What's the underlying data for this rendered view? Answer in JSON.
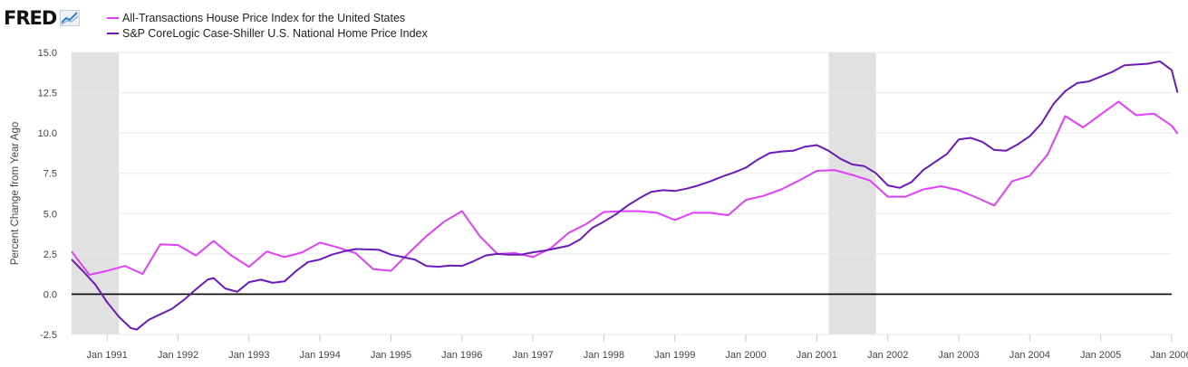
{
  "header": {
    "logo_text": "FRED"
  },
  "colors": {
    "series_1": "#e040fb",
    "series_2": "#6a1ab8",
    "recession": "#e1e1e1",
    "zero_line": "#000000",
    "grid": "#e8e8e8",
    "text": "#444444"
  },
  "chart_data": {
    "type": "line",
    "ylabel": "Percent Change from Year Ago",
    "ylim": [
      -2.5,
      15.0
    ],
    "y_ticks": [
      "-2.5",
      "0.0",
      "2.5",
      "5.0",
      "7.5",
      "10.0",
      "12.5",
      "15.0"
    ],
    "x_ticks": [
      "Jan 1991",
      "Jan 1992",
      "Jan 1993",
      "Jan 1994",
      "Jan 1995",
      "Jan 1996",
      "Jan 1997",
      "Jan 1998",
      "Jan 1999",
      "Jan 2000",
      "Jan 2001",
      "Jan 2002",
      "Jan 2003",
      "Jan 2004",
      "Jan 2005",
      "Jan 2006"
    ],
    "x_range": [
      "1990-07-01",
      "2006-01-01"
    ],
    "legend_position": "top-left",
    "grid": true,
    "recessions": [
      [
        "1990-07-01",
        "1991-03-01"
      ],
      [
        "2001-03-01",
        "2001-11-01"
      ]
    ],
    "series": [
      {
        "name": "All-Transactions House Price Index for the United States",
        "color": "#e040fb",
        "points": [
          [
            "1990-07-01",
            2.65
          ],
          [
            "1990-10-01",
            1.2
          ],
          [
            "1991-01-01",
            1.45
          ],
          [
            "1991-04-01",
            1.75
          ],
          [
            "1991-07-01",
            1.25
          ],
          [
            "1991-10-01",
            3.1
          ],
          [
            "1992-01-01",
            3.05
          ],
          [
            "1992-04-01",
            2.4
          ],
          [
            "1992-07-01",
            3.3
          ],
          [
            "1992-10-01",
            2.4
          ],
          [
            "1993-01-01",
            1.7
          ],
          [
            "1993-04-01",
            2.65
          ],
          [
            "1993-07-01",
            2.3
          ],
          [
            "1993-10-01",
            2.6
          ],
          [
            "1994-01-01",
            3.2
          ],
          [
            "1994-04-01",
            2.9
          ],
          [
            "1994-07-01",
            2.55
          ],
          [
            "1994-10-01",
            1.55
          ],
          [
            "1995-01-01",
            1.45
          ],
          [
            "1995-04-01",
            2.55
          ],
          [
            "1995-07-01",
            3.6
          ],
          [
            "1995-10-01",
            4.5
          ],
          [
            "1996-01-01",
            5.15
          ],
          [
            "1996-04-01",
            3.6
          ],
          [
            "1996-07-01",
            2.5
          ],
          [
            "1996-10-01",
            2.55
          ],
          [
            "1997-01-01",
            2.3
          ],
          [
            "1997-04-01",
            2.85
          ],
          [
            "1997-07-01",
            3.8
          ],
          [
            "1997-10-01",
            4.35
          ],
          [
            "1998-01-01",
            5.1
          ],
          [
            "1998-04-01",
            5.15
          ],
          [
            "1998-07-01",
            5.15
          ],
          [
            "1998-10-01",
            5.05
          ],
          [
            "1999-01-01",
            4.6
          ],
          [
            "1999-04-01",
            5.05
          ],
          [
            "1999-07-01",
            5.05
          ],
          [
            "1999-10-01",
            4.9
          ],
          [
            "2000-01-01",
            5.85
          ],
          [
            "2000-04-01",
            6.1
          ],
          [
            "2000-07-01",
            6.5
          ],
          [
            "2000-10-01",
            7.05
          ],
          [
            "2001-01-01",
            7.65
          ],
          [
            "2001-04-01",
            7.7
          ],
          [
            "2001-07-01",
            7.4
          ],
          [
            "2001-10-01",
            7.05
          ],
          [
            "2002-01-01",
            6.05
          ],
          [
            "2002-04-01",
            6.05
          ],
          [
            "2002-07-01",
            6.5
          ],
          [
            "2002-10-01",
            6.7
          ],
          [
            "2003-01-01",
            6.45
          ],
          [
            "2003-04-01",
            6.0
          ],
          [
            "2003-07-01",
            5.5
          ],
          [
            "2003-10-01",
            7.0
          ],
          [
            "2004-01-01",
            7.35
          ],
          [
            "2004-04-01",
            8.65
          ],
          [
            "2004-07-01",
            11.05
          ],
          [
            "2004-10-01",
            10.35
          ],
          [
            "2005-01-01",
            11.15
          ],
          [
            "2005-04-01",
            11.95
          ],
          [
            "2005-07-01",
            11.1
          ],
          [
            "2005-10-01",
            11.2
          ],
          [
            "2006-01-01",
            10.45
          ],
          [
            "2006-02-01",
            9.95
          ]
        ]
      },
      {
        "name": "S&P CoreLogic Case-Shiller U.S. National Home Price Index",
        "color": "#6a1ab8",
        "points": [
          [
            "1990-07-01",
            2.15
          ],
          [
            "1990-09-01",
            1.4
          ],
          [
            "1990-11-01",
            0.6
          ],
          [
            "1991-01-01",
            -0.5
          ],
          [
            "1991-03-01",
            -1.4
          ],
          [
            "1991-05-01",
            -2.1
          ],
          [
            "1991-06-01",
            -2.2
          ],
          [
            "1991-08-01",
            -1.6
          ],
          [
            "1991-10-01",
            -1.25
          ],
          [
            "1991-12-01",
            -0.9
          ],
          [
            "1992-02-01",
            -0.35
          ],
          [
            "1992-04-01",
            0.3
          ],
          [
            "1992-06-01",
            0.9
          ],
          [
            "1992-07-01",
            1.0
          ],
          [
            "1992-09-01",
            0.35
          ],
          [
            "1992-11-01",
            0.15
          ],
          [
            "1993-01-01",
            0.75
          ],
          [
            "1993-03-01",
            0.9
          ],
          [
            "1993-05-01",
            0.7
          ],
          [
            "1993-07-01",
            0.8
          ],
          [
            "1993-09-01",
            1.45
          ],
          [
            "1993-11-01",
            2.0
          ],
          [
            "1994-01-01",
            2.15
          ],
          [
            "1994-03-01",
            2.45
          ],
          [
            "1994-05-01",
            2.65
          ],
          [
            "1994-07-01",
            2.8
          ],
          [
            "1994-09-01",
            2.78
          ],
          [
            "1994-11-01",
            2.75
          ],
          [
            "1995-01-01",
            2.45
          ],
          [
            "1995-03-01",
            2.3
          ],
          [
            "1995-05-01",
            2.15
          ],
          [
            "1995-07-01",
            1.75
          ],
          [
            "1995-09-01",
            1.7
          ],
          [
            "1995-11-01",
            1.78
          ],
          [
            "1996-01-01",
            1.75
          ],
          [
            "1996-03-01",
            2.05
          ],
          [
            "1996-05-01",
            2.4
          ],
          [
            "1996-07-01",
            2.5
          ],
          [
            "1996-09-01",
            2.45
          ],
          [
            "1996-11-01",
            2.45
          ],
          [
            "1997-01-01",
            2.6
          ],
          [
            "1997-03-01",
            2.7
          ],
          [
            "1997-05-01",
            2.85
          ],
          [
            "1997-07-01",
            3.0
          ],
          [
            "1997-09-01",
            3.4
          ],
          [
            "1997-11-01",
            4.1
          ],
          [
            "1998-01-01",
            4.5
          ],
          [
            "1998-03-01",
            4.95
          ],
          [
            "1998-05-01",
            5.5
          ],
          [
            "1998-07-01",
            5.95
          ],
          [
            "1998-09-01",
            6.35
          ],
          [
            "1998-11-01",
            6.45
          ],
          [
            "1999-01-01",
            6.4
          ],
          [
            "1999-03-01",
            6.55
          ],
          [
            "1999-05-01",
            6.75
          ],
          [
            "1999-07-01",
            7.0
          ],
          [
            "1999-09-01",
            7.3
          ],
          [
            "1999-11-01",
            7.55
          ],
          [
            "2000-01-01",
            7.85
          ],
          [
            "2000-03-01",
            8.35
          ],
          [
            "2000-05-01",
            8.75
          ],
          [
            "2000-07-01",
            8.85
          ],
          [
            "2000-09-01",
            8.9
          ],
          [
            "2000-11-01",
            9.15
          ],
          [
            "2001-01-01",
            9.25
          ],
          [
            "2001-03-01",
            8.9
          ],
          [
            "2001-05-01",
            8.4
          ],
          [
            "2001-07-01",
            8.05
          ],
          [
            "2001-09-01",
            7.95
          ],
          [
            "2001-11-01",
            7.5
          ],
          [
            "2002-01-01",
            6.75
          ],
          [
            "2002-03-01",
            6.6
          ],
          [
            "2002-05-01",
            6.95
          ],
          [
            "2002-07-01",
            7.7
          ],
          [
            "2002-09-01",
            8.2
          ],
          [
            "2002-11-01",
            8.7
          ],
          [
            "2003-01-01",
            9.6
          ],
          [
            "2003-03-01",
            9.7
          ],
          [
            "2003-05-01",
            9.45
          ],
          [
            "2003-07-01",
            8.95
          ],
          [
            "2003-09-01",
            8.9
          ],
          [
            "2003-11-01",
            9.3
          ],
          [
            "2004-01-01",
            9.8
          ],
          [
            "2004-03-01",
            10.6
          ],
          [
            "2004-05-01",
            11.8
          ],
          [
            "2004-07-01",
            12.6
          ],
          [
            "2004-09-01",
            13.1
          ],
          [
            "2004-11-01",
            13.2
          ],
          [
            "2005-01-01",
            13.5
          ],
          [
            "2005-03-01",
            13.8
          ],
          [
            "2005-05-01",
            14.2
          ],
          [
            "2005-07-01",
            14.25
          ],
          [
            "2005-09-01",
            14.3
          ],
          [
            "2005-11-01",
            14.45
          ],
          [
            "2006-01-01",
            13.9
          ],
          [
            "2006-02-01",
            12.5
          ]
        ]
      }
    ]
  }
}
